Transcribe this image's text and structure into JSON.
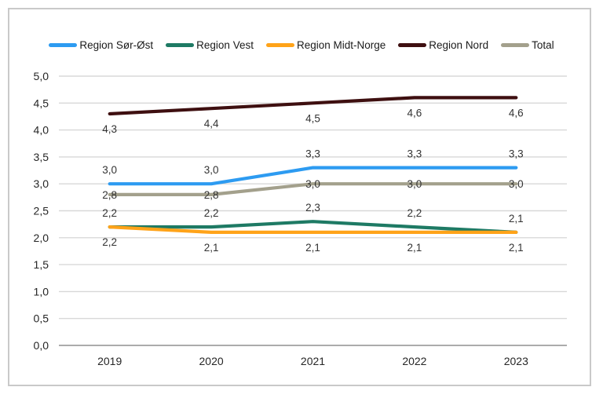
{
  "chart_data": {
    "type": "line",
    "title": "",
    "xlabel": "",
    "ylabel": "",
    "decimal_separator": ",",
    "grid": true,
    "legend_position": "top",
    "categories": [
      "2019",
      "2020",
      "2021",
      "2022",
      "2023"
    ],
    "ylim": [
      0,
      5
    ],
    "y_ticks": [
      {
        "value": 0.0,
        "label": "0,0"
      },
      {
        "value": 0.5,
        "label": "0,5"
      },
      {
        "value": 1.0,
        "label": "1,0"
      },
      {
        "value": 1.5,
        "label": "1,5"
      },
      {
        "value": 2.0,
        "label": "2,0"
      },
      {
        "value": 2.5,
        "label": "2,5"
      },
      {
        "value": 3.0,
        "label": "3,0"
      },
      {
        "value": 3.5,
        "label": "3,5"
      },
      {
        "value": 4.0,
        "label": "4,0"
      },
      {
        "value": 4.5,
        "label": "4,5"
      },
      {
        "value": 5.0,
        "label": "5,0"
      }
    ],
    "series": [
      {
        "id": "region-sor-ost",
        "name": "Region Sør-Øst",
        "color": "#2D9BF1",
        "values": [
          3.0,
          3.0,
          3.3,
          3.3,
          3.3
        ],
        "labels": [
          "3,0",
          "3,0",
          "3,3",
          "3,3",
          "3,3"
        ],
        "label_position": "above"
      },
      {
        "id": "region-vest",
        "name": "Region Vest",
        "color": "#1E7A64",
        "values": [
          2.2,
          2.2,
          2.3,
          2.2,
          2.1
        ],
        "labels": [
          "2,2",
          "2,2",
          "2,3",
          "2,2",
          "2,1"
        ],
        "label_position": "above"
      },
      {
        "id": "region-midt-norge",
        "name": "Region Midt-Norge",
        "color": "#FFA319",
        "values": [
          2.2,
          2.1,
          2.1,
          2.1,
          2.1
        ],
        "labels": [
          "2,2",
          "2,1",
          "2,1",
          "2,1",
          "2,1"
        ],
        "label_position": "below"
      },
      {
        "id": "region-nord",
        "name": "Region Nord",
        "color": "#3E0F10",
        "values": [
          4.3,
          4.4,
          4.5,
          4.6,
          4.6
        ],
        "labels": [
          "4,3",
          "4,4",
          "4,5",
          "4,6",
          "4,6"
        ],
        "label_position": "below"
      },
      {
        "id": "total",
        "name": "Total",
        "color": "#A3A08C",
        "values": [
          2.8,
          2.8,
          3.0,
          3.0,
          3.0
        ],
        "labels": [
          "2,8",
          "2,8",
          "3,0",
          "3,0",
          "3,0"
        ],
        "label_position": "center"
      }
    ]
  }
}
